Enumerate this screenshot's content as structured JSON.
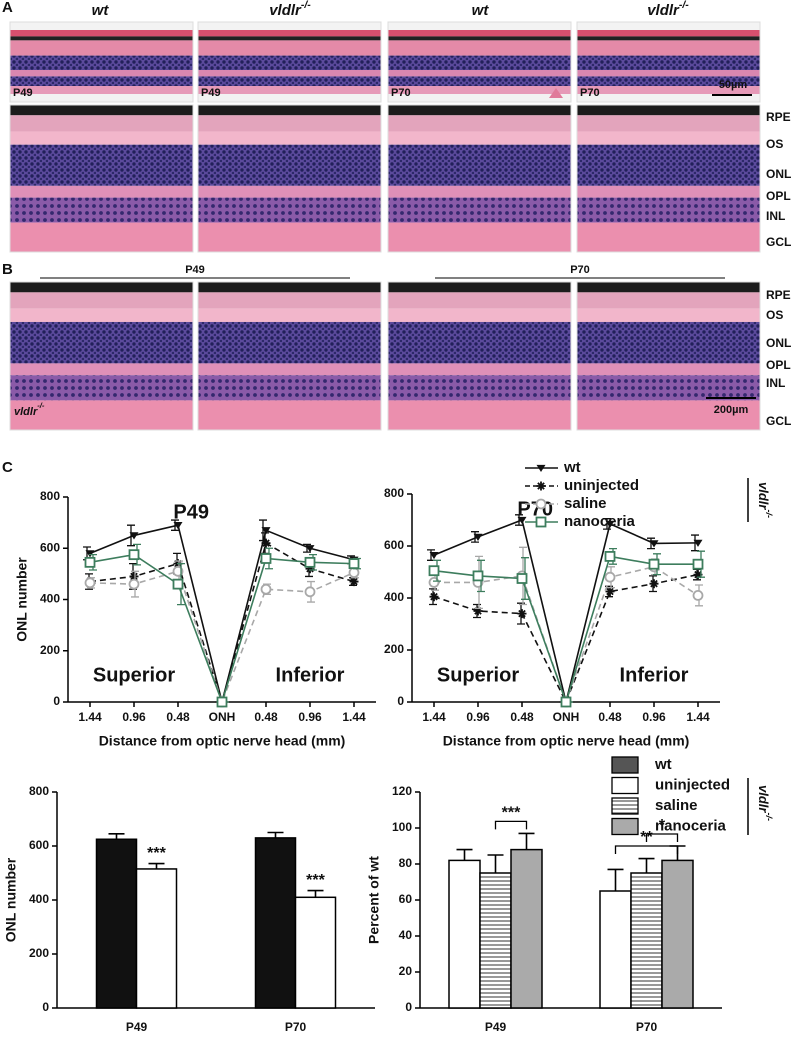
{
  "figure": {
    "panel_labels": [
      "A",
      "B",
      "C"
    ],
    "panel_a": {
      "column_labels": [
        {
          "text": "wt"
        },
        {
          "text": "vldlr",
          "sup": "-/-"
        },
        {
          "text": "wt"
        },
        {
          "text": "vldlr",
          "sup": "-/-"
        }
      ],
      "image_labels": [
        "P49",
        "P49",
        "P70",
        "P70"
      ],
      "scale_bar": "50µm",
      "layers": [
        "RPE",
        "OS",
        "ONL",
        "OPL",
        "INL",
        "GCL"
      ]
    },
    "panel_b": {
      "group_labels": [
        "P49",
        "P70"
      ],
      "image_label": {
        "text": "vldlr",
        "sup": "-/-"
      },
      "scale_bar": "200µm",
      "layers": [
        "RPE",
        "OS",
        "ONL",
        "OPL",
        "INL",
        "GCL"
      ]
    }
  },
  "chart_data": [
    {
      "type": "line",
      "title": "P49",
      "categories": [
        "1.44",
        "0.96",
        "0.48",
        "ONH",
        "0.48",
        "0.96",
        "1.44"
      ],
      "xlabel": "Distance from optic nerve head (mm)",
      "ylabel": "ONL number",
      "ylim": [
        0,
        800
      ],
      "yticks": [
        0,
        200,
        400,
        600,
        800
      ],
      "annotations": [
        "Superior",
        "Inferior"
      ],
      "series": [
        {
          "color": "#111111",
          "marker": "triangle",
          "dash": false,
          "values": [
            580,
            650,
            690,
            0,
            670,
            600,
            555
          ],
          "errors": [
            25,
            40,
            20,
            0,
            40,
            15,
            15
          ]
        },
        {
          "color": "#111111",
          "marker": "asterisk",
          "dash": true,
          "values": [
            470,
            490,
            540,
            0,
            620,
            520,
            470
          ],
          "errors": [
            30,
            50,
            40,
            0,
            40,
            30,
            15
          ]
        },
        {
          "color": "#a8a8a8",
          "marker": "circle",
          "dash": true,
          "values": [
            465,
            460,
            510,
            0,
            440,
            430,
            505
          ],
          "errors": [
            20,
            50,
            40,
            0,
            20,
            40,
            20
          ]
        },
        {
          "color": "#3d7d5d",
          "marker": "square",
          "dash": false,
          "values": [
            545,
            575,
            460,
            0,
            560,
            545,
            540
          ],
          "errors": [
            30,
            40,
            80,
            0,
            40,
            30,
            20
          ]
        }
      ]
    },
    {
      "type": "line",
      "title": "P70",
      "categories": [
        "1.44",
        "0.96",
        "0.48",
        "ONH",
        "0.48",
        "0.96",
        "1.44"
      ],
      "xlabel": "Distance from optic nerve head (mm)",
      "ylim": [
        0,
        800
      ],
      "yticks": [
        0,
        200,
        400,
        600,
        800
      ],
      "annotations": [
        "Superior",
        "Inferior"
      ],
      "legend_group": {
        "text": "vldlr",
        "sup": "-/-"
      },
      "series": [
        {
          "name": "wt",
          "color": "#111111",
          "marker": "triangle",
          "dash": false,
          "values": [
            565,
            635,
            700,
            0,
            685,
            610,
            612
          ],
          "errors": [
            20,
            20,
            20,
            0,
            20,
            20,
            30
          ]
        },
        {
          "name": "uninjected",
          "color": "#111111",
          "marker": "asterisk",
          "dash": true,
          "values": [
            405,
            350,
            340,
            0,
            425,
            455,
            490
          ],
          "errors": [
            30,
            25,
            40,
            0,
            20,
            30,
            20
          ]
        },
        {
          "name": "saline",
          "color": "#a8a8a8",
          "marker": "circle",
          "dash": true,
          "values": [
            460,
            460,
            485,
            0,
            480,
            520,
            410
          ],
          "errors": [
            30,
            100,
            110,
            0,
            40,
            30,
            40
          ]
        },
        {
          "name": "nanoceria",
          "color": "#3d7d5d",
          "marker": "square",
          "dash": false,
          "values": [
            505,
            485,
            475,
            0,
            560,
            530,
            530
          ],
          "errors": [
            40,
            60,
            80,
            0,
            30,
            40,
            50
          ]
        }
      ]
    },
    {
      "type": "bar",
      "categories": [
        "P49",
        "P70"
      ],
      "ylabel": "ONL number",
      "ylim": [
        0,
        800
      ],
      "yticks": [
        0,
        200,
        400,
        600,
        800
      ],
      "annotations": [
        "***",
        "***"
      ],
      "series": [
        {
          "color": "#111111",
          "pattern": "solid",
          "values": [
            625,
            630
          ],
          "errors": [
            20,
            20
          ]
        },
        {
          "color": "#ffffff",
          "pattern": "solid",
          "values": [
            515,
            410
          ],
          "errors": [
            20,
            25
          ]
        }
      ]
    },
    {
      "type": "bar",
      "categories": [
        "P49",
        "P70"
      ],
      "ylabel": "Percent of wt",
      "ylim": [
        0,
        120
      ],
      "yticks": [
        0,
        20,
        40,
        60,
        80,
        100,
        120
      ],
      "annotations": [
        "***",
        "**",
        "*"
      ],
      "legend": [
        {
          "name": "wt",
          "color": "#555555",
          "pattern": "solid"
        },
        {
          "name": "uninjected",
          "color": "#ffffff",
          "pattern": "solid"
        },
        {
          "name": "saline",
          "color": "#ffffff",
          "pattern": "stripes"
        },
        {
          "name": "nanoceria",
          "color": "#aaaaaa",
          "pattern": "solid"
        }
      ],
      "legend_group": {
        "text": "vldlr",
        "sup": "-/-"
      },
      "series": [
        {
          "color": "#ffffff",
          "pattern": "solid",
          "values": [
            82,
            65
          ],
          "errors": [
            6,
            12
          ]
        },
        {
          "color": "#ffffff",
          "pattern": "stripes",
          "values": [
            75,
            75
          ],
          "errors": [
            10,
            8
          ]
        },
        {
          "color": "#aaaaaa",
          "pattern": "solid",
          "values": [
            88,
            82
          ],
          "errors": [
            9,
            8
          ]
        }
      ]
    }
  ]
}
